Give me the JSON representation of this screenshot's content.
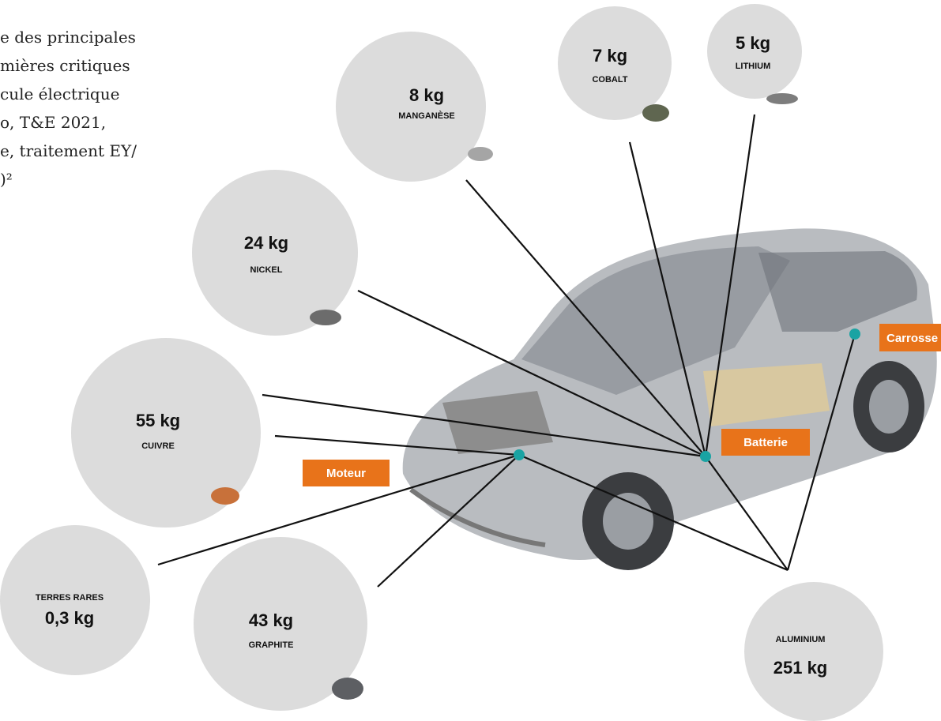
{
  "intro": {
    "lines": [
      "e des principales",
      "mières critiques",
      "cule électrique",
      "o, T&E 2021,",
      "e, traitement EY/",
      ")²"
    ]
  },
  "materials": [
    {
      "amount": "8 kg",
      "name": "MANGANÈSE"
    },
    {
      "amount": "7 kg",
      "name": "COBALT"
    },
    {
      "amount": "5 kg",
      "name": "LITHIUM"
    },
    {
      "amount": "24 kg",
      "name": "NICKEL"
    },
    {
      "amount": "55 kg",
      "name": "CUIVRE"
    },
    {
      "name": "TERRES RARES",
      "amount": "0,3 kg"
    },
    {
      "amount": "43 kg",
      "name": "GRAPHITE"
    },
    {
      "name": "ALUMINIUM",
      "amount": "251 kg"
    }
  ],
  "tags": {
    "motor": "Moteur",
    "battery": "Batterie",
    "body": "Carrosse"
  }
}
